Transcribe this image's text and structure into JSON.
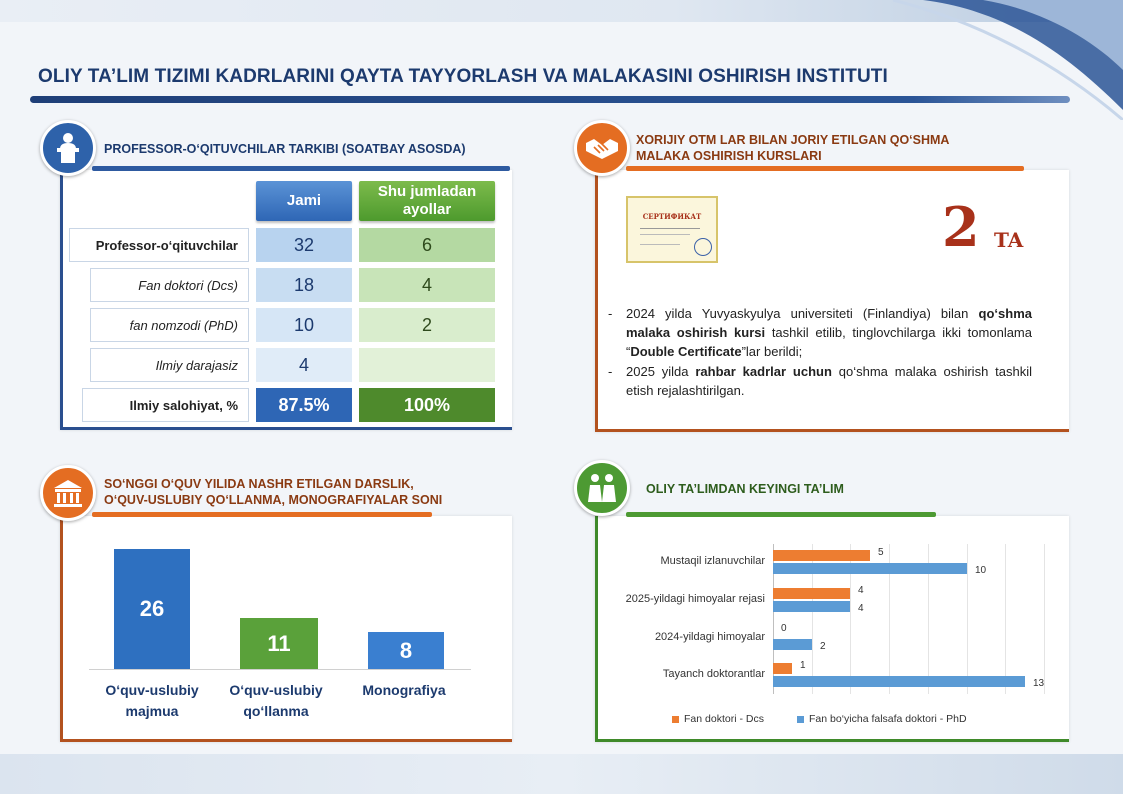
{
  "header": {
    "title": "OLIY TA’LIM TIZIMI KADRLARINI QAYTA TAYYORLASH VA MALAKASINI OSHIRISH INSTITUTI"
  },
  "staff": {
    "section_title": "PROFESSOR-O‘QITUVCHILAR TARKIBI (SOATBAY ASOSDA)",
    "icon": "lectern-speaker-icon",
    "col_total": "Jami",
    "col_women": "Shu jumladan ayollar",
    "rows": [
      {
        "label": "Professor-o‘qituvchilar",
        "total": "32",
        "women": "6"
      },
      {
        "label": "Fan doktori (Dcs)",
        "total": "18",
        "women": "4"
      },
      {
        "label": "fan nomzodi (PhD)",
        "total": "10",
        "women": "2"
      },
      {
        "label": "Ilmiy darajasiz",
        "total": "4",
        "women": ""
      },
      {
        "label": "Ilmiy salohiyat, %",
        "total": "87.5%",
        "women": "100%"
      }
    ]
  },
  "joint": {
    "section_title_1": "XORIJIY OTM LAR BILAN JORIY ETILGAN QO‘SHMA",
    "section_title_2": "MALAKA OSHIRISH KURSLARI",
    "icon": "handshake-icon",
    "certificate_title": "СЕРТИФИКАТ",
    "count": "2",
    "count_unit": "TA",
    "bullet1_a": "2024 yilda Yuvyaskyulya universiteti (Finlandiya) bilan ",
    "bullet1_b": "qo‘shma malaka oshirish kursi",
    "bullet1_c": " tashkil etilib, tinglovchilarga ikki tomonlama “",
    "bullet1_d": "Double Certificate",
    "bullet1_e": "”lar berildi;",
    "bullet2_a": "2025 yilda ",
    "bullet2_b": "rahbar kadrlar uchun",
    "bullet2_c": " qo‘shma malaka oshirish tashkil etish rejalashtirilgan."
  },
  "publications": {
    "section_title_1": "SO‘NGGI O‘QUV YILIDA NASHR ETILGAN DARSLIK,",
    "section_title_2": "O‘QUV-USLUBIY QO‘LLANMA, MONOGRAFIYALAR SONI",
    "icon": "university-building-icon",
    "items": [
      {
        "label_1": "O‘quv-uslubiy",
        "label_2": "majmua",
        "value": 26,
        "value_text": "26",
        "color": "#2e70c0"
      },
      {
        "label_1": "O‘quv-uslubiy",
        "label_2": "qo‘llanma",
        "value": 11,
        "value_text": "11",
        "color": "#5aa13a"
      },
      {
        "label_1": "Monografiya",
        "label_2": "",
        "value": 8,
        "value_text": "8",
        "color": "#3a7fd0"
      }
    ]
  },
  "postgrad": {
    "section_title": "OLIY TA’LIMDAN KEYINGI TA’LIM",
    "icon": "graduates-icon"
  },
  "chart_data": {
    "type": "bar",
    "orientation": "horizontal",
    "categories": [
      "Mustaqil izlanuvchilar",
      "2025-yildagi himoyalar rejasi",
      "2024-yildagi himoyalar",
      "Tayanch doktorantlar"
    ],
    "series": [
      {
        "name": "Fan doktori - Dcs",
        "values": [
          5,
          4,
          0,
          1
        ],
        "color": "#ed7d31"
      },
      {
        "name": "Fan bo‘yicha falsafa doktori - PhD",
        "values": [
          10,
          4,
          2,
          13
        ],
        "color": "#5b9bd5"
      }
    ],
    "xlim": [
      0,
      14
    ],
    "grid": true,
    "legend": "bottom"
  }
}
